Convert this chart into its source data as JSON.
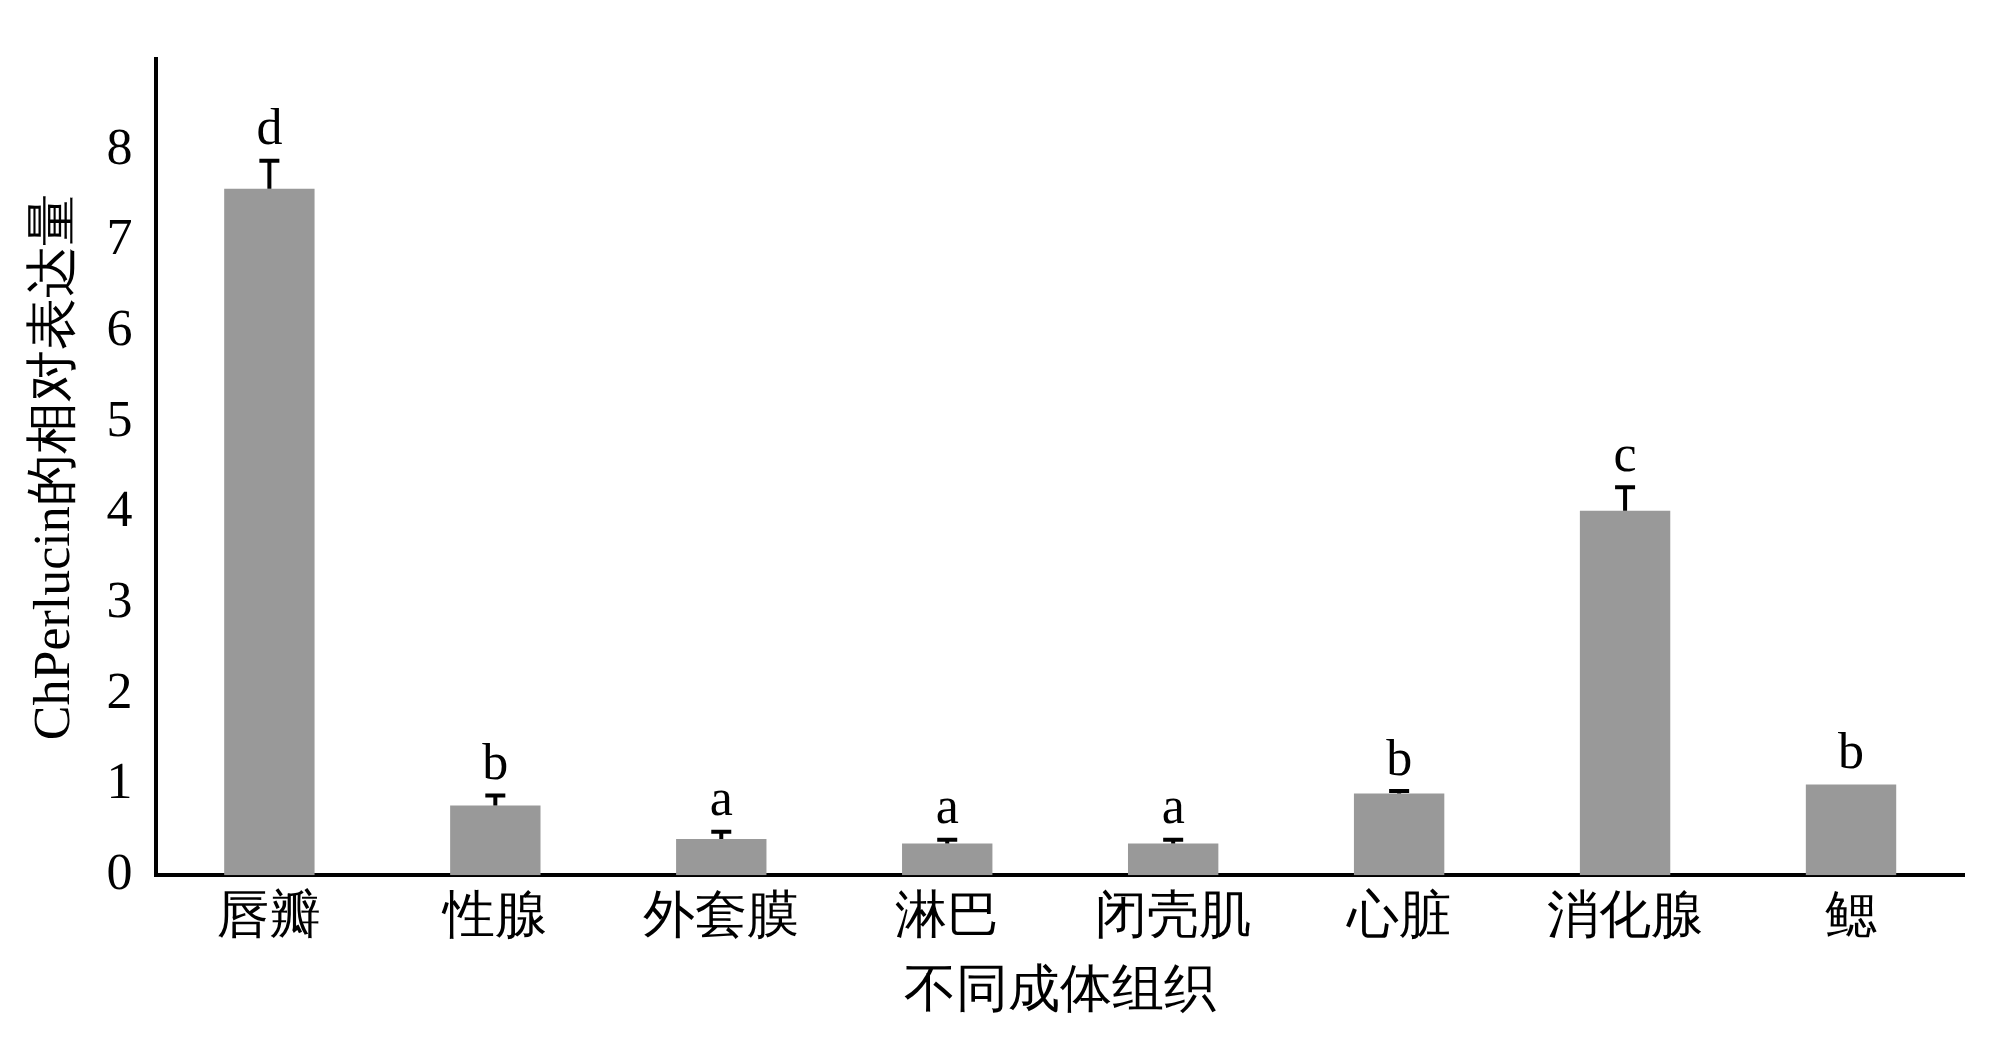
{
  "chart_data": {
    "type": "bar",
    "xlabel": "不同成体组织",
    "ylabel": "ChPerlucin的相对表达量",
    "categories": [
      "唇瓣",
      "性腺",
      "外套膜",
      "淋巴",
      "闭壳肌",
      "心脏",
      "消化腺",
      "鳃"
    ],
    "values": [
      7.57,
      0.77,
      0.4,
      0.35,
      0.35,
      0.9,
      4.02,
      1.0
    ],
    "errors": [
      0.31,
      0.11,
      0.08,
      0.04,
      0.04,
      0.03,
      0.26,
      null
    ],
    "color": "#999999",
    "ylim": [
      0,
      9
    ],
    "yticks": [
      0,
      1,
      2,
      3,
      4,
      5,
      6,
      7,
      8
    ],
    "grid": false,
    "legend": false,
    "annotations": [
      {
        "text": "d",
        "x": "唇瓣",
        "y": 7.88
      },
      {
        "text": "b",
        "x": "性腺",
        "y": 0.88
      },
      {
        "text": "a",
        "x": "外套膜",
        "y": 0.48
      },
      {
        "text": "a",
        "x": "淋巴",
        "y": 0.39
      },
      {
        "text": "a",
        "x": "闭壳肌",
        "y": 0.39
      },
      {
        "text": "b",
        "x": "心脏",
        "y": 0.93
      },
      {
        "text": "c",
        "x": "消化腺",
        "y": 4.28
      },
      {
        "text": "b",
        "x": "鳃",
        "y": 1.0
      }
    ]
  }
}
